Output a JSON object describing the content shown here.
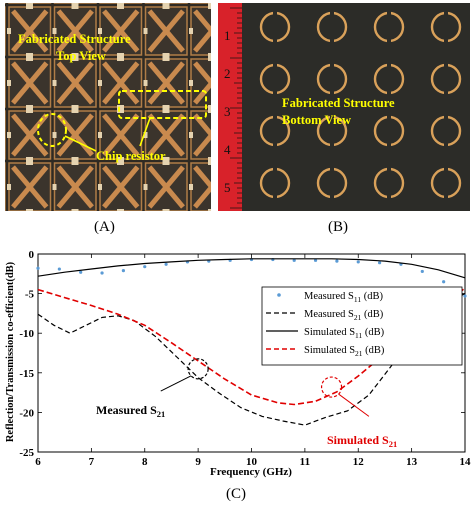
{
  "panels": {
    "a": {
      "label": "(A)",
      "title_line1": "Fabricated Structure",
      "title_line2": "Top View",
      "callout": "Chip resistor"
    },
    "b": {
      "label": "(B)",
      "title_line1": "Fabricated Structure",
      "title_line2": "Bottom View",
      "ruler_numbers": [
        "1",
        "2",
        "3",
        "4",
        "5"
      ]
    },
    "c": {
      "label": "(C)"
    }
  },
  "colors": {
    "annotation_yellow": "#ffff00",
    "measured_s11": "#5b9bd5",
    "measured_s21": "#000000",
    "simulated_s11": "#000000",
    "simulated_s21": "#e00000",
    "ruler_red": "#d8222a",
    "board_copper": "#c98a4e",
    "board_dark": "#3b342c",
    "bottom_dark": "#2c2c28",
    "ring_copper": "#d9a15a"
  },
  "chart_data": {
    "type": "line",
    "xlabel": "Frequency (GHz)",
    "ylabel": "Reflection/Transmission co-efficient(dB)",
    "xlim": [
      6,
      14
    ],
    "ylim": [
      -25,
      0
    ],
    "xticks": [
      6,
      7,
      8,
      9,
      10,
      11,
      12,
      13,
      14
    ],
    "yticks": [
      0,
      -5,
      -10,
      -15,
      -20,
      -25
    ],
    "grid": false,
    "legend_position": "top-right",
    "series": [
      {
        "name_main": "Measured S",
        "name_sub": "11",
        "name_unit": " (dB)",
        "style": "dots",
        "x": [
          6,
          6.4,
          6.8,
          7.2,
          7.6,
          8,
          8.4,
          8.8,
          9.2,
          9.6,
          10,
          10.4,
          10.8,
          11.2,
          11.6,
          12,
          12.4,
          12.8,
          13.2,
          13.6,
          14
        ],
        "y": [
          -1.8,
          -1.9,
          -2.3,
          -2.4,
          -2.1,
          -1.6,
          -1.3,
          -1.0,
          -0.9,
          -0.8,
          -0.7,
          -0.7,
          -0.8,
          -0.8,
          -0.9,
          -1.0,
          -1.1,
          -1.3,
          -2.2,
          -3.5,
          -5.3
        ]
      },
      {
        "name_main": "Measured S",
        "name_sub": "21",
        "name_unit": " (dB)",
        "style": "dashed",
        "x": [
          6,
          6.3,
          6.6,
          6.9,
          7.2,
          7.5,
          7.8,
          8.2,
          8.6,
          9.0,
          9.4,
          9.8,
          10.2,
          10.6,
          11.0,
          11.4,
          11.8,
          12.2,
          12.6,
          13.0,
          13.4,
          13.7,
          14
        ],
        "y": [
          -7.6,
          -9.0,
          -10.0,
          -9.0,
          -8.0,
          -7.8,
          -8.4,
          -10.4,
          -13.0,
          -15.6,
          -17.6,
          -19.4,
          -20.5,
          -21.1,
          -21.6,
          -20.6,
          -19.8,
          -17.8,
          -14.3,
          -10.6,
          -7.3,
          -6.0,
          -5.0
        ]
      },
      {
        "name_main": "Simulated S",
        "name_sub": "11",
        "name_unit": " (dB)",
        "style": "solid",
        "x": [
          6,
          6.5,
          7,
          7.5,
          8,
          8.5,
          9,
          9.5,
          10,
          10.5,
          11,
          11.5,
          12,
          12.5,
          13,
          13.5,
          14
        ],
        "y": [
          -2.8,
          -2.3,
          -1.9,
          -1.5,
          -1.2,
          -1.0,
          -0.8,
          -0.7,
          -0.6,
          -0.6,
          -0.6,
          -0.6,
          -0.7,
          -0.9,
          -1.3,
          -2.0,
          -3.0
        ]
      },
      {
        "name_main": "Simulated S",
        "name_sub": "21",
        "name_unit": " (dB)",
        "style": "dashed",
        "x": [
          6,
          6.5,
          7,
          7.5,
          8,
          8.5,
          9,
          9.5,
          10,
          10.5,
          10.8,
          11.2,
          11.6,
          12,
          12.5,
          13,
          13.5,
          14
        ],
        "y": [
          -4.5,
          -5.5,
          -6.5,
          -7.6,
          -9.0,
          -11.2,
          -13.5,
          -15.8,
          -17.8,
          -18.8,
          -19.0,
          -18.6,
          -17.4,
          -15.4,
          -12.6,
          -9.8,
          -7.0,
          -4.3
        ]
      }
    ],
    "annotations": [
      {
        "text_main": "Measured S",
        "text_sub": "21",
        "circle_x": 9.0,
        "circle_y": -14.5,
        "arrow_to_x": 8.3,
        "arrow_to_y": -17.3
      },
      {
        "text_main": "Simulated S",
        "text_sub": "21",
        "circle_x": 11.5,
        "circle_y": -16.8,
        "arrow_to_x": 12.2,
        "arrow_to_y": -20.5
      }
    ]
  }
}
